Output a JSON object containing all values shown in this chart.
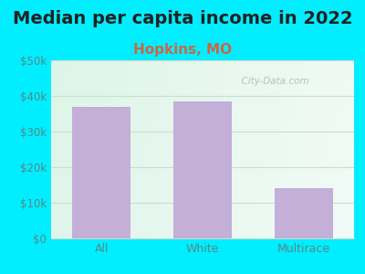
{
  "title": "Median per capita income in 2022",
  "subtitle": "Hopkins, MO",
  "categories": [
    "All",
    "White",
    "Multirace"
  ],
  "values": [
    37000,
    38500,
    14000
  ],
  "bar_color": "#c4afd8",
  "title_fontsize": 14,
  "subtitle_fontsize": 11,
  "subtitle_color": "#cc6644",
  "title_color": "#222222",
  "outer_bg": "#00eeff",
  "plot_bg_top_left": "#ddf5e8",
  "plot_bg_top_right": "#eef8f4",
  "plot_bg_bottom_left": "#e8f8ee",
  "plot_bg_bottom_right": "#f5faf7",
  "tick_label_color": "#558888",
  "ylim": [
    0,
    50000
  ],
  "yticks": [
    0,
    10000,
    20000,
    30000,
    40000,
    50000
  ],
  "ytick_labels": [
    "$0",
    "$10k",
    "$20k",
    "$30k",
    "$40k",
    "$50k"
  ],
  "grid_color": "#ccddcc",
  "watermark_text": "  City-Data.com",
  "watermark_color": "#aabbaa"
}
